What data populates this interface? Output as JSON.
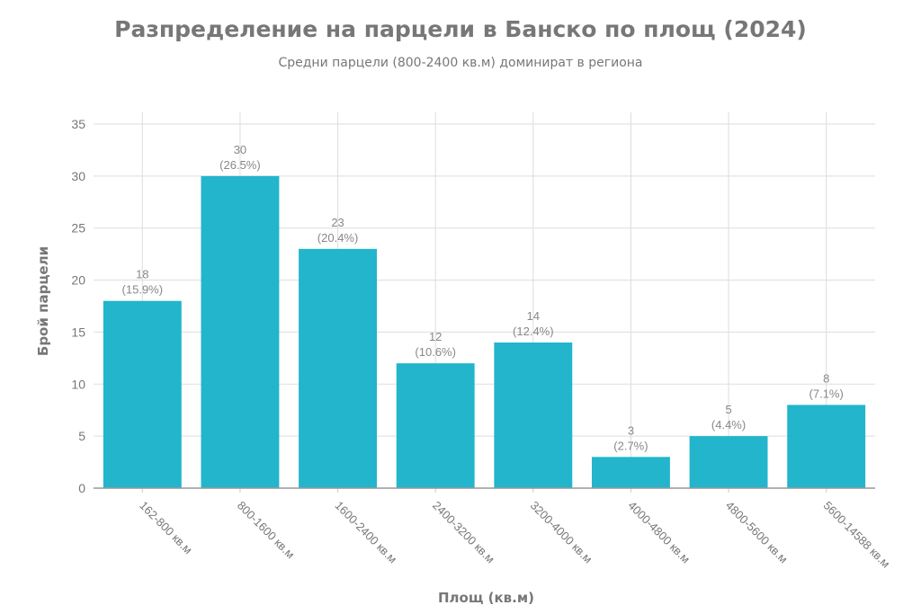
{
  "title": "Разпределение на парцели в Банско по площ (2024)",
  "subtitle": "Средни парцели (800-2400 кв.м) доминират в региона",
  "chart_data": {
    "type": "bar",
    "title": "Разпределение на парцели в Банско по площ (2024)",
    "subtitle": "Средни парцели (800-2400 кв.м) доминират в региона",
    "xlabel": "Площ (кв.м)",
    "ylabel": "Брой парцели",
    "categories": [
      "162-800 кв.м",
      "800-1600 кв.м",
      "1600-2400 кв.м",
      "2400-3200 кв.м",
      "3200-4000 кв.м",
      "4000-4800 кв.м",
      "4800-5600 кв.м",
      "5600-14588 кв.м"
    ],
    "values": [
      18,
      30,
      23,
      12,
      14,
      3,
      5,
      8
    ],
    "percentages": [
      "15.9%",
      "26.5%",
      "20.4%",
      "10.6%",
      "12.4%",
      "2.7%",
      "4.4%",
      "7.1%"
    ],
    "ylim": [
      0,
      35
    ],
    "yticks": [
      0,
      5,
      10,
      15,
      20,
      25,
      30,
      35
    ],
    "grid": true,
    "legend": null,
    "bar_color": "#22b5cc"
  }
}
